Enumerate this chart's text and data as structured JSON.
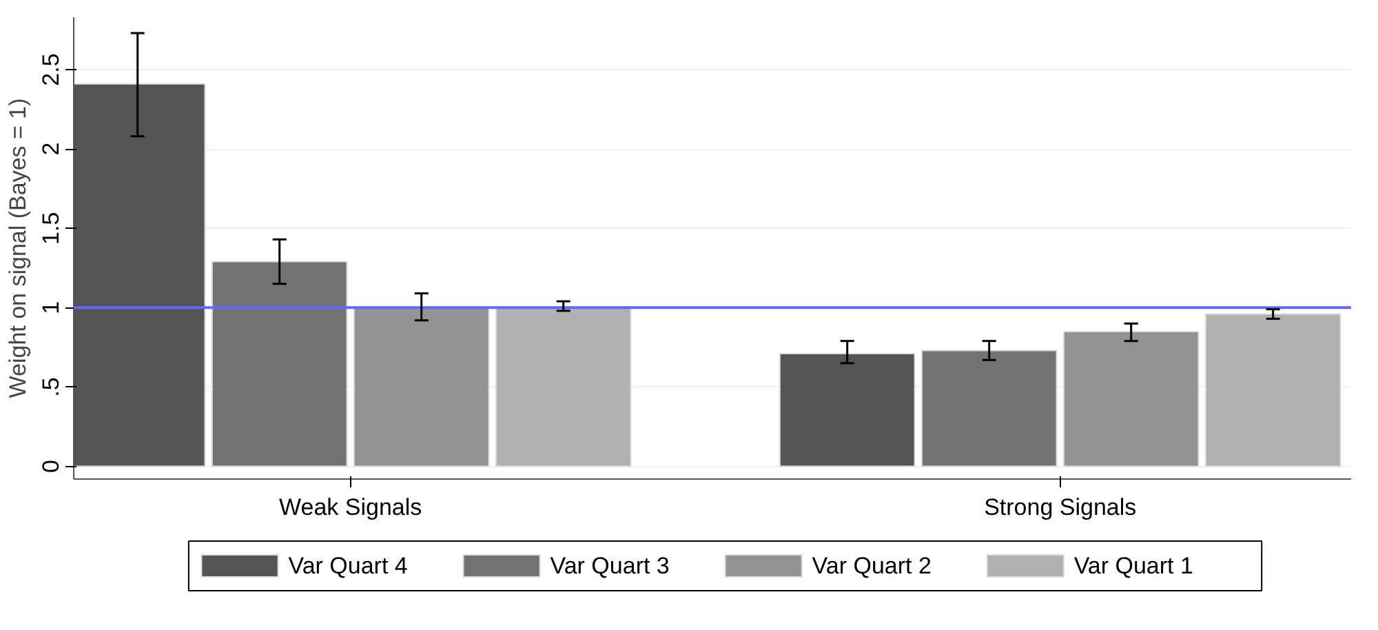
{
  "chart_data": {
    "type": "bar",
    "ylabel": "Weight on signal (Bayes = 1)",
    "categories": [
      "Weak Signals",
      "Strong Signals"
    ],
    "series": [
      {
        "name": "Var Quart 4",
        "color": "#545454",
        "values": [
          2.41,
          0.71
        ],
        "errors": [
          [
            2.08,
            2.73
          ],
          [
            0.65,
            0.79
          ]
        ]
      },
      {
        "name": "Var Quart 3",
        "color": "#737373",
        "values": [
          1.29,
          0.73
        ],
        "errors": [
          [
            1.15,
            1.43
          ],
          [
            0.67,
            0.79
          ]
        ]
      },
      {
        "name": "Var Quart 2",
        "color": "#939393",
        "values": [
          1.0,
          0.85
        ],
        "errors": [
          [
            0.92,
            1.09
          ],
          [
            0.79,
            0.9
          ]
        ]
      },
      {
        "name": "Var Quart 1",
        "color": "#b1b1b1",
        "values": [
          1.0,
          0.96
        ],
        "errors": [
          [
            0.98,
            1.04
          ],
          [
            0.93,
            0.99
          ]
        ]
      }
    ],
    "ylim": [
      -0.08,
      2.83
    ],
    "yticks": [
      0,
      {
        "value": 0.5,
        "label": ".5"
      },
      1,
      1.5,
      2,
      2.5
    ],
    "ref_lines": [
      {
        "axis": "y",
        "value": 1,
        "color": "#6666ff"
      }
    ],
    "grid": "y",
    "legend": "bottom"
  }
}
